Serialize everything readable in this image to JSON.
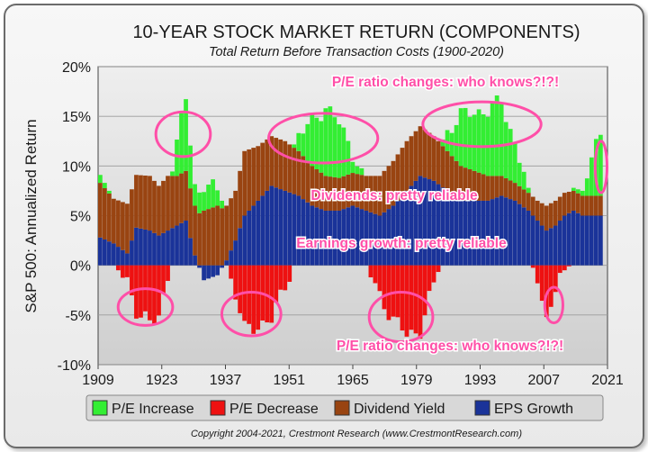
{
  "chart_data": {
    "type": "bar",
    "stacked": true,
    "title": "10-YEAR STOCK MARKET RETURN (COMPONENTS)",
    "subtitle": "Total Return Before Transaction Costs (1900-2020)",
    "ylabel": "S&P 500: Annualized Return",
    "ylim": [
      -10,
      20
    ],
    "yticks": [
      "20%",
      "15%",
      "10%",
      "5%",
      "0%",
      "-5%",
      "-10%"
    ],
    "ytick_values": [
      20,
      15,
      10,
      5,
      0,
      -5,
      -10
    ],
    "xlim": [
      1909,
      2021
    ],
    "xticks": [
      "1909",
      "1923",
      "1937",
      "1951",
      "1965",
      "1979",
      "1993",
      "2007",
      "2021"
    ],
    "xtick_values": [
      1909,
      1923,
      1937,
      1951,
      1965,
      1979,
      1993,
      2007,
      2021
    ],
    "legend_position": "bottom",
    "colors": {
      "pe_increase": "#33ee33",
      "pe_decrease": "#ee1111",
      "dividend": "#994411",
      "eps": "#1a3399",
      "annotation": "#ff4fa8"
    },
    "series": [
      {
        "name": "P/E Increase",
        "color": "#33ee33"
      },
      {
        "name": "P/E Decrease",
        "color": "#ee1111"
      },
      {
        "name": "Dividend Yield",
        "color": "#994411"
      },
      {
        "name": "EPS Growth",
        "color": "#1a3399"
      }
    ],
    "annotations": [
      "P/E ratio changes: who knows?!?!",
      "Dividends: pretty reliable",
      "Earnings growth: pretty reliable",
      "P/E ratio changes: who knows?!?!"
    ],
    "anchors": [
      {
        "year": 1909,
        "eps": 2.8,
        "div": 5.5,
        "pe": 0.8
      },
      {
        "year": 1912,
        "eps": 2.2,
        "div": 4.5,
        "pe": 0
      },
      {
        "year": 1915,
        "eps": 1.2,
        "div": 5.0,
        "pe": -1.5
      },
      {
        "year": 1917,
        "eps": 3.8,
        "div": 5.3,
        "pe": -4.5
      },
      {
        "year": 1920,
        "eps": 3.5,
        "div": 5.5,
        "pe": -6.0
      },
      {
        "year": 1922,
        "eps": 3.0,
        "div": 5.0,
        "pe": -5.0
      },
      {
        "year": 1924,
        "eps": 3.5,
        "div": 5.5,
        "pe": -1.0
      },
      {
        "year": 1926,
        "eps": 4.0,
        "div": 5.0,
        "pe": 3.0
      },
      {
        "year": 1928,
        "eps": 4.5,
        "div": 5.0,
        "pe": 7.5
      },
      {
        "year": 1930,
        "eps": 1.0,
        "div": 5.0,
        "pe": 2.0
      },
      {
        "year": 1932,
        "eps": -1.5,
        "div": 5.5,
        "pe": 2.5
      },
      {
        "year": 1935,
        "eps": -1.0,
        "div": 6.0,
        "pe": 1.5
      },
      {
        "year": 1937,
        "eps": 0.5,
        "div": 5.5,
        "pe": 0
      },
      {
        "year": 1939,
        "eps": 2.5,
        "div": 5.0,
        "pe": -3.0
      },
      {
        "year": 1941,
        "eps": 5.0,
        "div": 6.5,
        "pe": -6.5
      },
      {
        "year": 1944,
        "eps": 6.5,
        "div": 5.5,
        "pe": -6.0
      },
      {
        "year": 1947,
        "eps": 8.0,
        "div": 5.0,
        "pe": -5.5
      },
      {
        "year": 1950,
        "eps": 7.5,
        "div": 5.0,
        "pe": -2.0
      },
      {
        "year": 1953,
        "eps": 7.0,
        "div": 4.5,
        "pe": 1.5
      },
      {
        "year": 1956,
        "eps": 6.0,
        "div": 4.0,
        "pe": 4.5
      },
      {
        "year": 1959,
        "eps": 5.5,
        "div": 3.5,
        "pe": 7.0
      },
      {
        "year": 1962,
        "eps": 5.5,
        "div": 3.3,
        "pe": 5.5
      },
      {
        "year": 1965,
        "eps": 6.0,
        "div": 3.3,
        "pe": 2.0
      },
      {
        "year": 1968,
        "eps": 5.5,
        "div": 3.5,
        "pe": 0
      },
      {
        "year": 1971,
        "eps": 5.0,
        "div": 4.0,
        "pe": -3.0
      },
      {
        "year": 1974,
        "eps": 6.0,
        "div": 4.5,
        "pe": -5.5
      },
      {
        "year": 1977,
        "eps": 7.5,
        "div": 5.0,
        "pe": -7.0
      },
      {
        "year": 1980,
        "eps": 9.0,
        "div": 5.0,
        "pe": -6.5
      },
      {
        "year": 1983,
        "eps": 8.5,
        "div": 4.5,
        "pe": -2.0
      },
      {
        "year": 1986,
        "eps": 7.5,
        "div": 4.0,
        "pe": 2.0
      },
      {
        "year": 1989,
        "eps": 6.5,
        "div": 3.5,
        "pe": 5.0
      },
      {
        "year": 1992,
        "eps": 6.5,
        "div": 3.0,
        "pe": 6.0
      },
      {
        "year": 1995,
        "eps": 6.5,
        "div": 2.5,
        "pe": 6.5
      },
      {
        "year": 1998,
        "eps": 7.0,
        "div": 2.0,
        "pe": 7.5
      },
      {
        "year": 2001,
        "eps": 6.5,
        "div": 1.8,
        "pe": 4.0
      },
      {
        "year": 2004,
        "eps": 5.5,
        "div": 1.8,
        "pe": 0.5
      },
      {
        "year": 2006,
        "eps": 4.5,
        "div": 2.0,
        "pe": -1.0
      },
      {
        "year": 2008,
        "eps": 3.5,
        "div": 2.5,
        "pe": -5.5
      },
      {
        "year": 2010,
        "eps": 4.0,
        "div": 2.5,
        "pe": -2.5
      },
      {
        "year": 2012,
        "eps": 5.0,
        "div": 2.3,
        "pe": -0.5
      },
      {
        "year": 2014,
        "eps": 5.5,
        "div": 2.0,
        "pe": 0.3
      },
      {
        "year": 2016,
        "eps": 5.0,
        "div": 2.0,
        "pe": 0.5
      },
      {
        "year": 2018,
        "eps": 5.0,
        "div": 2.0,
        "pe": 3.5
      },
      {
        "year": 2020,
        "eps": 5.0,
        "div": 2.0,
        "pe": 6.5
      }
    ]
  },
  "copyright": "Copyright 2004-2021, Crestmont Research (www.CrestmontResearch.com)"
}
